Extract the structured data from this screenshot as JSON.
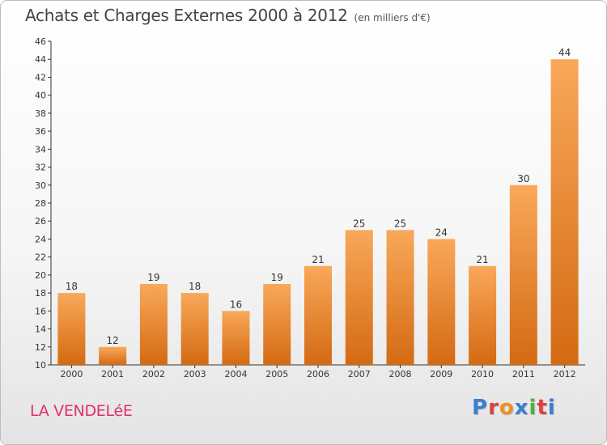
{
  "header": {
    "title": "Achats et Charges Externes 2000 à 2012",
    "subtitle": "(en milliers d'€)"
  },
  "footer": {
    "city": "LA VENDELéE",
    "logo": "Proxiti"
  },
  "colors": {
    "bar_top": "#f9a85a",
    "bar_bottom": "#d46a12",
    "city": "#e0306c",
    "logo": [
      "#3a7fd0",
      "#e04040",
      "#f09020",
      "#3a7fd0",
      "#50b040",
      "#e04040",
      "#3a7fd0"
    ]
  },
  "chart_data": {
    "type": "bar",
    "title": "Achats et Charges Externes 2000 à 2012",
    "subtitle": "(en milliers d'€)",
    "categories": [
      "2000",
      "2001",
      "2002",
      "2003",
      "2004",
      "2005",
      "2006",
      "2007",
      "2008",
      "2009",
      "2010",
      "2011",
      "2012"
    ],
    "values": [
      18,
      12,
      19,
      18,
      16,
      19,
      21,
      25,
      25,
      24,
      21,
      30,
      44
    ],
    "ylim": [
      10,
      46
    ],
    "yticks": [
      10,
      12,
      14,
      16,
      18,
      20,
      22,
      24,
      26,
      28,
      30,
      32,
      34,
      36,
      38,
      40,
      42,
      44,
      46
    ],
    "grid": false,
    "data_labels": true
  }
}
